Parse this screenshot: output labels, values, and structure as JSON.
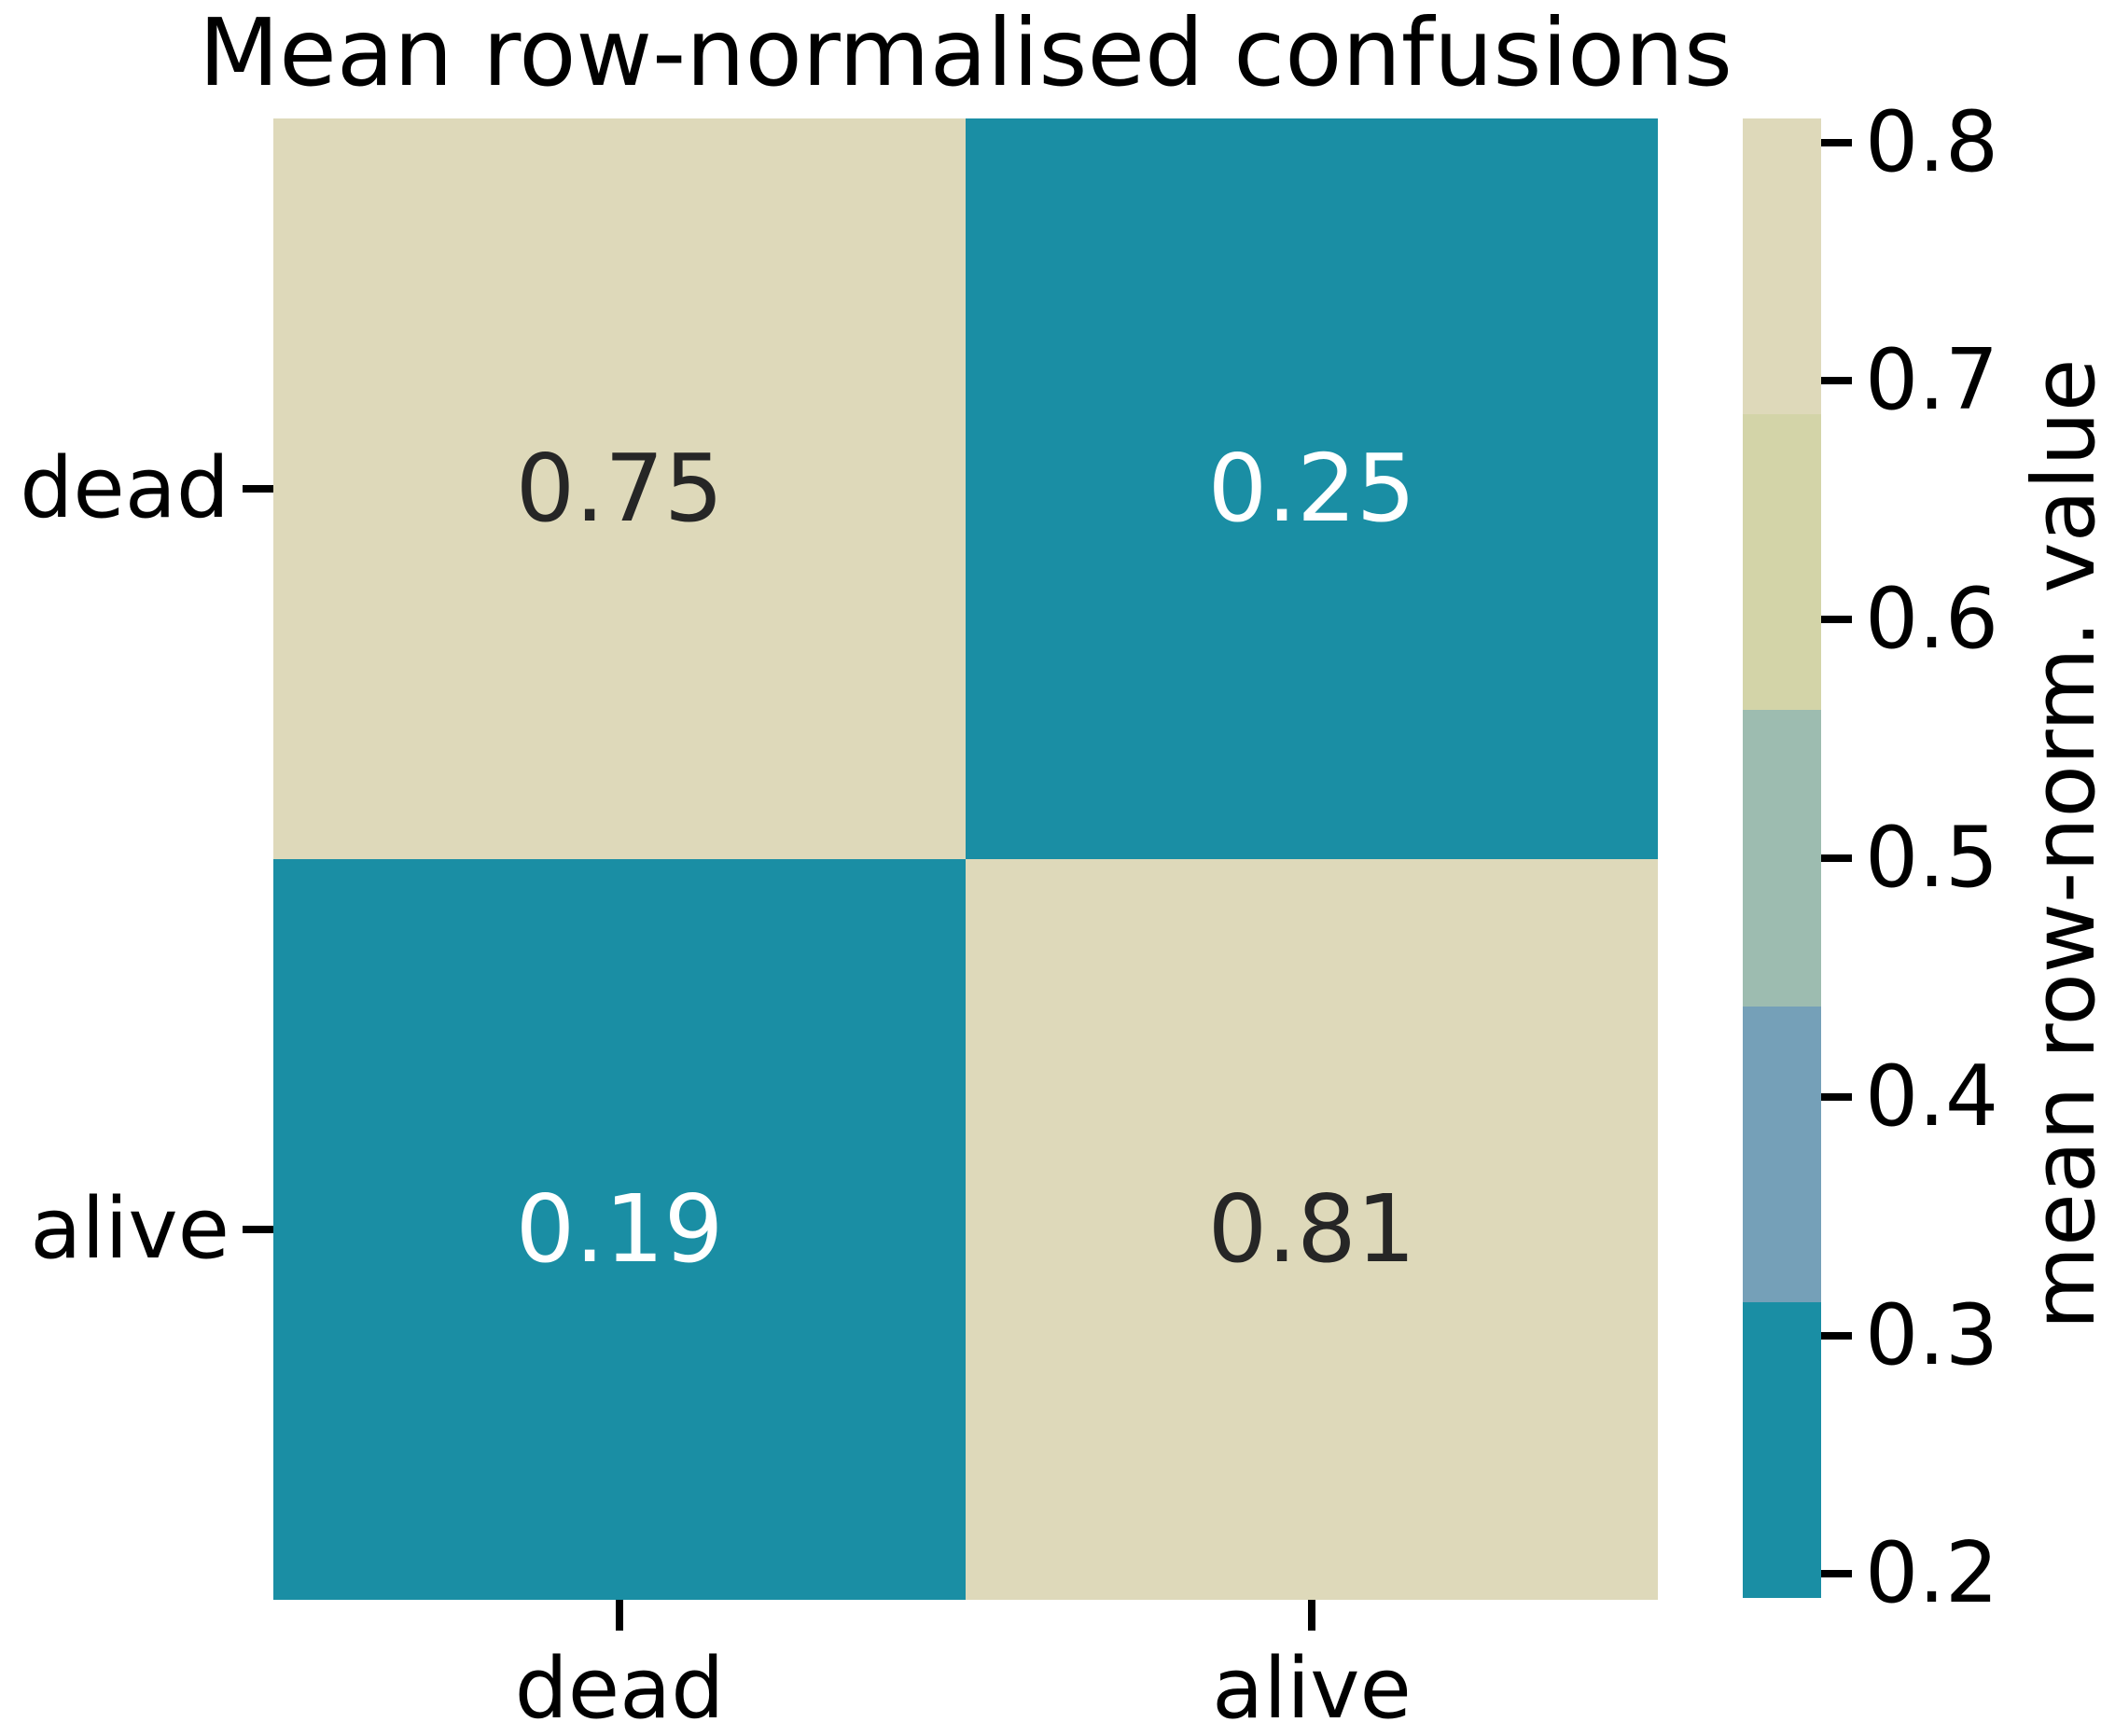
{
  "title": "Mean row-normalised confusions",
  "chart_data": {
    "type": "heatmap",
    "title": "Mean row-normalised confusions",
    "x_categories": [
      "dead",
      "alive"
    ],
    "y_categories": [
      "dead",
      "alive"
    ],
    "rows": [
      {
        "label": "dead",
        "values": [
          0.75,
          0.25
        ]
      },
      {
        "label": "alive",
        "values": [
          0.19,
          0.81
        ]
      }
    ],
    "cell_labels": [
      [
        "0.75",
        "0.25"
      ],
      [
        "0.19",
        "0.81"
      ]
    ],
    "value_range": [
      0.19,
      0.81
    ],
    "grid": "off",
    "colorbar": {
      "label": "mean row-norm. value",
      "position": "right",
      "tick_labels": [
        "0.8",
        "0.7",
        "0.6",
        "0.5",
        "0.4",
        "0.3",
        "0.2"
      ],
      "tick_values": [
        0.8,
        0.7,
        0.6,
        0.5,
        0.4,
        0.3,
        0.2
      ],
      "segments": [
        {
          "from": 0.686,
          "to": 0.81,
          "color": "#ded9ba"
        },
        {
          "from": 0.562,
          "to": 0.686,
          "color": "#d3d4a8"
        },
        {
          "from": 0.438,
          "to": 0.562,
          "color": "#9dbcb0"
        },
        {
          "from": 0.314,
          "to": 0.438,
          "color": "#75a0b8"
        },
        {
          "from": 0.19,
          "to": 0.314,
          "color": "#1a8ea4"
        }
      ]
    },
    "annotation_colors": {
      "dark": "#262626",
      "light": "#ffffff"
    },
    "axis_text_color": "#000000"
  }
}
